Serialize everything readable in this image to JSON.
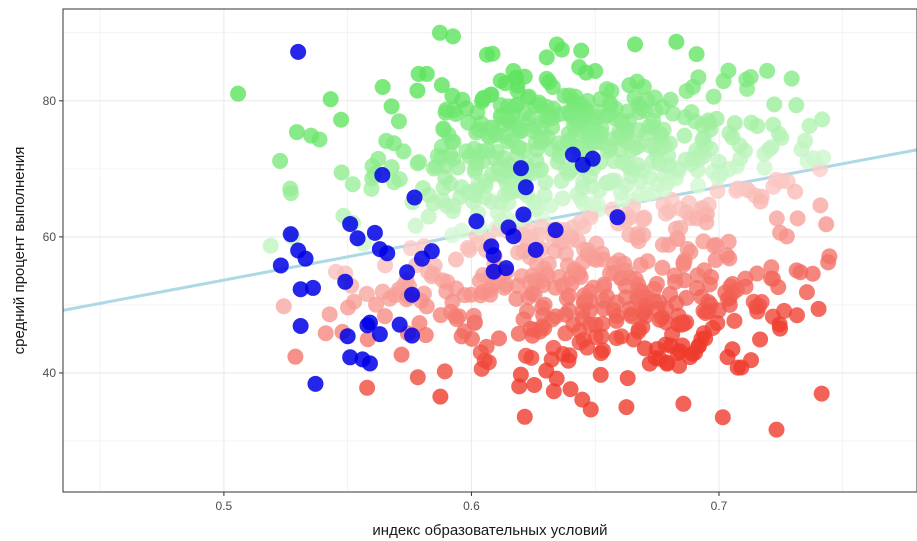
{
  "chart_data": {
    "type": "scatter",
    "title": "",
    "xlabel": "индекс образовательных условий",
    "ylabel": "средний процент выполнения",
    "xlim": [
      0.435,
      0.78
    ],
    "ylim": [
      22.5,
      93.5
    ],
    "x_ticks": [
      0.5,
      0.6,
      0.7
    ],
    "x_tick_labels": [
      "0.5",
      "0.6",
      "0.7"
    ],
    "y_ticks": [
      40,
      60,
      80
    ],
    "y_tick_labels": [
      "40",
      "60",
      "80"
    ],
    "grid": true,
    "legend": "none",
    "colors": {
      "high": "#5be35b",
      "high_faint": "#ffffff",
      "low": "#ef3b2c",
      "low_faint": "#ffffff",
      "highlight": "#0000e6",
      "trend": "#add8e6",
      "grid": "#ebebeb",
      "panel_border": "#333333"
    },
    "trend_line": {
      "x": [
        0.435,
        0.78
      ],
      "y": [
        49.2,
        72.8
      ]
    },
    "series": [
      {
        "role": "highlighted",
        "color": "#0000e6",
        "points": [
          [
            0.53,
            87.2
          ],
          [
            0.558,
            47.0
          ],
          [
            0.564,
            69.1
          ],
          [
            0.577,
            65.8
          ],
          [
            0.641,
            72.1
          ],
          [
            0.645,
            70.6
          ],
          [
            0.649,
            71.5
          ],
          [
            0.62,
            70.1
          ],
          [
            0.622,
            67.3
          ],
          [
            0.602,
            62.3
          ],
          [
            0.621,
            63.3
          ],
          [
            0.659,
            62.9
          ],
          [
            0.615,
            61.4
          ],
          [
            0.617,
            60.1
          ],
          [
            0.634,
            61.0
          ],
          [
            0.626,
            58.1
          ],
          [
            0.608,
            58.6
          ],
          [
            0.609,
            57.3
          ],
          [
            0.609,
            54.9
          ],
          [
            0.614,
            55.4
          ],
          [
            0.527,
            60.4
          ],
          [
            0.53,
            58.0
          ],
          [
            0.533,
            56.8
          ],
          [
            0.523,
            55.8
          ],
          [
            0.551,
            61.9
          ],
          [
            0.554,
            59.8
          ],
          [
            0.561,
            60.6
          ],
          [
            0.563,
            58.2
          ],
          [
            0.566,
            57.6
          ],
          [
            0.584,
            57.9
          ],
          [
            0.58,
            56.8
          ],
          [
            0.574,
            54.8
          ],
          [
            0.549,
            53.4
          ],
          [
            0.531,
            52.3
          ],
          [
            0.536,
            52.5
          ],
          [
            0.576,
            51.5
          ],
          [
            0.531,
            46.9
          ],
          [
            0.559,
            47.4
          ],
          [
            0.563,
            45.7
          ],
          [
            0.55,
            45.4
          ],
          [
            0.571,
            47.1
          ],
          [
            0.576,
            45.5
          ],
          [
            0.551,
            42.3
          ],
          [
            0.556,
            42.0
          ],
          [
            0.559,
            41.4
          ],
          [
            0.537,
            38.4
          ]
        ]
      }
    ]
  }
}
